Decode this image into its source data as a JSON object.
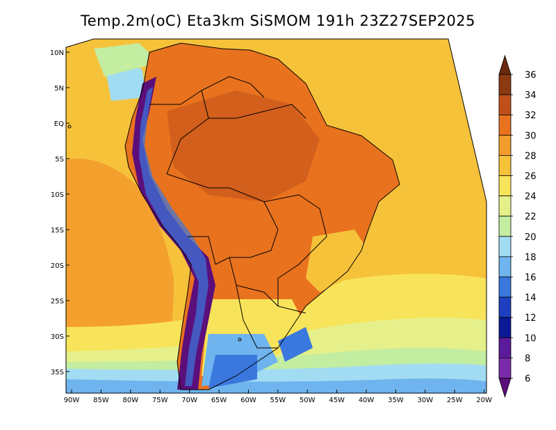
{
  "title": "Temp.2m(oC) Eta3km SiSMOM 191h 23Z27SEP2025",
  "lat_ticks": [
    "10N",
    "5N",
    "EQ",
    "5S",
    "10S",
    "15S",
    "20S",
    "25S",
    "30S",
    "35S"
  ],
  "lon_ticks": [
    "90W",
    "85W",
    "80W",
    "75W",
    "70W",
    "65W",
    "60W",
    "55W",
    "50W",
    "45W",
    "40W",
    "35W",
    "30W",
    "25W",
    "20W"
  ],
  "colorbar": {
    "labels": [
      "36",
      "34",
      "32",
      "30",
      "28",
      "26",
      "24",
      "22",
      "20",
      "18",
      "16",
      "14",
      "12",
      "10",
      "8",
      "6"
    ],
    "colors": [
      "#6b2a0e",
      "#8b3a12",
      "#c0501a",
      "#e8721e",
      "#f39c2e",
      "#f6c23a",
      "#f8e45a",
      "#e6f08a",
      "#c3eda1",
      "#a2dcf2",
      "#6fb4ee",
      "#3b78de",
      "#1e3fbf",
      "#0a1a96",
      "#5a1a9a",
      "#7a2aa8",
      "#5c0e7a"
    ]
  },
  "colors": {
    "ocean_warm": "#f6c23a",
    "land_hot": "#e8721e",
    "andes_cold": "#5c0e7a",
    "south_cool": "#6fb4ee"
  }
}
